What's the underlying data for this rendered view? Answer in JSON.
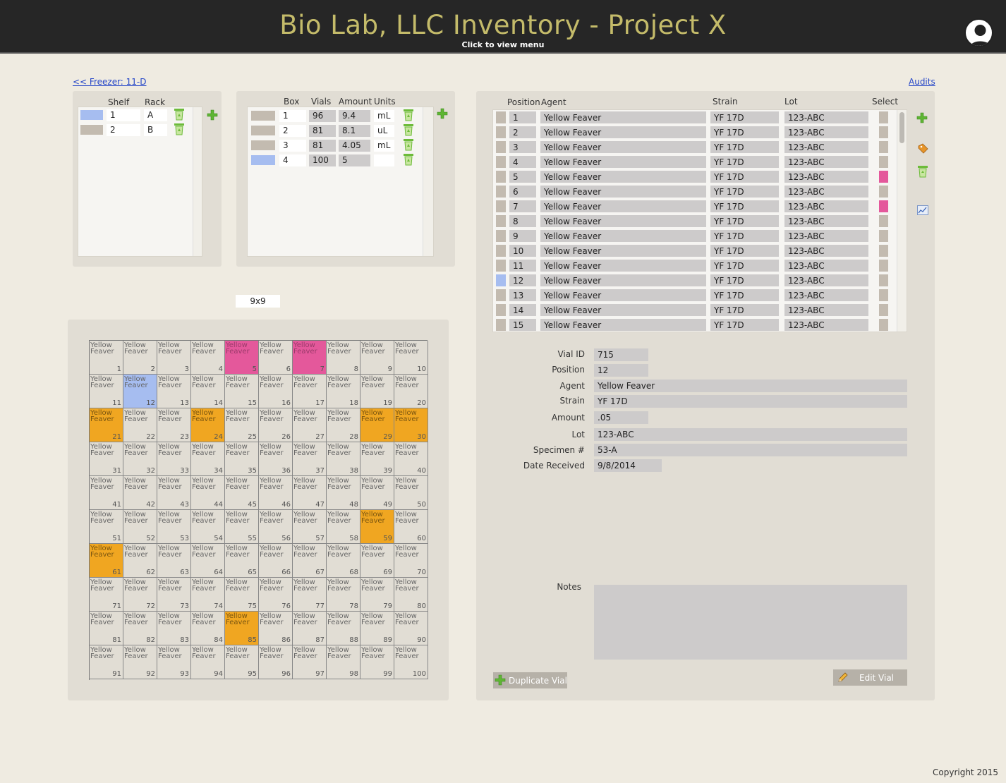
{
  "header": {
    "title": "Bio Lab, LLC Inventory - Project X",
    "subtitle": "Click to view menu"
  },
  "nav": {
    "back_link": "<< Freezer: 11-D",
    "audits_link": "Audits"
  },
  "colors": {
    "blue": "#a6bdf0",
    "pink": "#e4589b",
    "orange": "#f0a621",
    "tan": "#c3bbb0"
  },
  "racks": {
    "headers": [
      "Shelf",
      "Rack"
    ],
    "rows": [
      {
        "shelf": "1",
        "rack": "A",
        "selected": true
      },
      {
        "shelf": "2",
        "rack": "B",
        "selected": false
      }
    ]
  },
  "boxes": {
    "headers": [
      "Box",
      "Vials",
      "Amount",
      "Units"
    ],
    "rows": [
      {
        "box": "1",
        "vials": "96",
        "amount": "9.4",
        "units": "mL",
        "selected": false
      },
      {
        "box": "2",
        "vials": "81",
        "amount": "8.1",
        "units": "uL",
        "selected": false
      },
      {
        "box": "3",
        "vials": "81",
        "amount": "4.05",
        "units": "mL",
        "selected": false
      },
      {
        "box": "4",
        "vials": "100",
        "amount": "5",
        "units": "",
        "selected": true
      }
    ]
  },
  "grid_size": "9x9",
  "grid": {
    "cell_text": "Yellow Feaver",
    "blue_cells": [
      12
    ],
    "pink_cells": [
      5,
      7
    ],
    "orange_cells": [
      21,
      24,
      29,
      30,
      59,
      61,
      85
    ]
  },
  "vials": {
    "headers": [
      "Position",
      "Agent",
      "Strain",
      "Lot",
      "Select"
    ],
    "rows": [
      {
        "position": "1",
        "agent": "Yellow Feaver",
        "strain": "YF 17D",
        "lot": "123-ABC",
        "select": false,
        "current": false
      },
      {
        "position": "2",
        "agent": "Yellow Feaver",
        "strain": "YF 17D",
        "lot": "123-ABC",
        "select": false,
        "current": false
      },
      {
        "position": "3",
        "agent": "Yellow Feaver",
        "strain": "YF 17D",
        "lot": "123-ABC",
        "select": false,
        "current": false
      },
      {
        "position": "4",
        "agent": "Yellow Feaver",
        "strain": "YF 17D",
        "lot": "123-ABC",
        "select": false,
        "current": false
      },
      {
        "position": "5",
        "agent": "Yellow Feaver",
        "strain": "YF 17D",
        "lot": "123-ABC",
        "select": true,
        "current": false
      },
      {
        "position": "6",
        "agent": "Yellow Feaver",
        "strain": "YF 17D",
        "lot": "123-ABC",
        "select": false,
        "current": false
      },
      {
        "position": "7",
        "agent": "Yellow Feaver",
        "strain": "YF 17D",
        "lot": "123-ABC",
        "select": true,
        "current": false
      },
      {
        "position": "8",
        "agent": "Yellow Feaver",
        "strain": "YF 17D",
        "lot": "123-ABC",
        "select": false,
        "current": false
      },
      {
        "position": "9",
        "agent": "Yellow Feaver",
        "strain": "YF 17D",
        "lot": "123-ABC",
        "select": false,
        "current": false
      },
      {
        "position": "10",
        "agent": "Yellow Feaver",
        "strain": "YF 17D",
        "lot": "123-ABC",
        "select": false,
        "current": false
      },
      {
        "position": "11",
        "agent": "Yellow Feaver",
        "strain": "YF 17D",
        "lot": "123-ABC",
        "select": false,
        "current": false
      },
      {
        "position": "12",
        "agent": "Yellow Feaver",
        "strain": "YF 17D",
        "lot": "123-ABC",
        "select": false,
        "current": true
      },
      {
        "position": "13",
        "agent": "Yellow Feaver",
        "strain": "YF 17D",
        "lot": "123-ABC",
        "select": false,
        "current": false
      },
      {
        "position": "14",
        "agent": "Yellow Feaver",
        "strain": "YF 17D",
        "lot": "123-ABC",
        "select": false,
        "current": false
      },
      {
        "position": "15",
        "agent": "Yellow Feaver",
        "strain": "YF 17D",
        "lot": "123-ABC",
        "select": false,
        "current": false
      }
    ]
  },
  "details": {
    "vial_id": {
      "label": "Vial ID",
      "value": "715"
    },
    "position": {
      "label": "Position",
      "value": "12"
    },
    "agent": {
      "label": "Agent",
      "value": "Yellow Feaver"
    },
    "strain": {
      "label": "Strain",
      "value": "YF 17D"
    },
    "amount": {
      "label": "Amount",
      "value": ".05"
    },
    "lot": {
      "label": "Lot",
      "value": "123-ABC"
    },
    "specimen": {
      "label": "Specimen #",
      "value": "53-A"
    },
    "date_received": {
      "label": "Date Received",
      "value": "9/8/2014"
    },
    "notes": {
      "label": "Notes",
      "value": ""
    }
  },
  "buttons": {
    "duplicate": "Duplicate Vial",
    "edit": "Edit Vial"
  },
  "footer": {
    "copyright": "Copyright 2015"
  }
}
